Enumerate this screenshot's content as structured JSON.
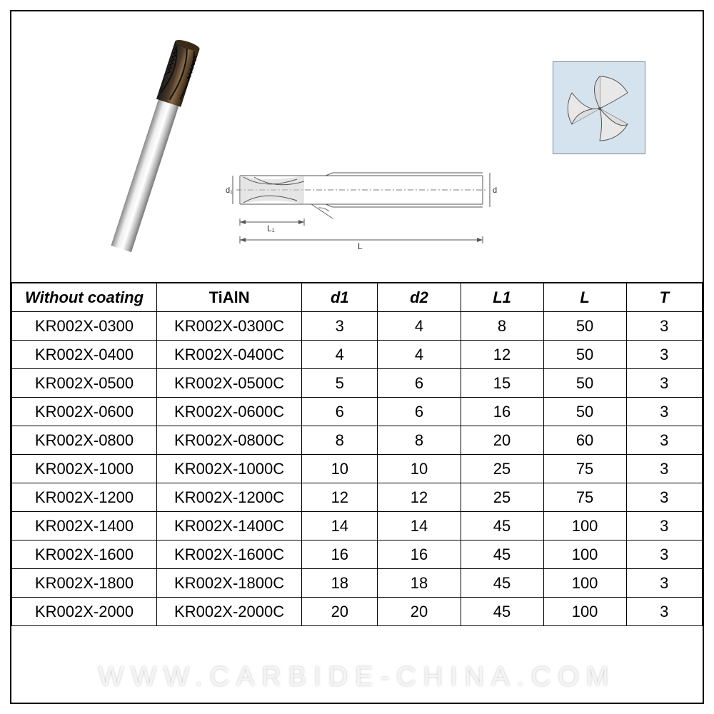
{
  "table": {
    "columns": [
      "Without coating",
      "TiAlN",
      "d1",
      "d2",
      "L1",
      "L",
      "T"
    ],
    "rows": [
      [
        "KR002X-0300",
        "KR002X-0300C",
        "3",
        "4",
        "8",
        "50",
        "3"
      ],
      [
        "KR002X-0400",
        "KR002X-0400C",
        "4",
        "4",
        "12",
        "50",
        "3"
      ],
      [
        "KR002X-0500",
        "KR002X-0500C",
        "5",
        "6",
        "15",
        "50",
        "3"
      ],
      [
        "KR002X-0600",
        "KR002X-0600C",
        "6",
        "6",
        "16",
        "50",
        "3"
      ],
      [
        "KR002X-0800",
        "KR002X-0800C",
        "8",
        "8",
        "20",
        "60",
        "3"
      ],
      [
        "KR002X-1000",
        "KR002X-1000C",
        "10",
        "10",
        "25",
        "75",
        "3"
      ],
      [
        "KR002X-1200",
        "KR002X-1200C",
        "12",
        "12",
        "25",
        "75",
        "3"
      ],
      [
        "KR002X-1400",
        "KR002X-1400C",
        "14",
        "14",
        "45",
        "100",
        "3"
      ],
      [
        "KR002X-1600",
        "KR002X-1600C",
        "16",
        "16",
        "45",
        "100",
        "3"
      ],
      [
        "KR002X-1800",
        "KR002X-1800C",
        "18",
        "18",
        "45",
        "100",
        "3"
      ],
      [
        "KR002X-2000",
        "KR002X-2000C",
        "20",
        "20",
        "45",
        "100",
        "3"
      ]
    ],
    "border_color": "#000000",
    "background_color": "#ffffff",
    "font_size": 22
  },
  "diagrams": {
    "cross_section_bg": "#d4e3ed",
    "dim_labels": {
      "d1_sym": "d₁",
      "d2_sym": "d₂",
      "L1": "L₁",
      "L": "L"
    }
  },
  "watermark": "WWW.CARBIDE-CHINA.COM"
}
